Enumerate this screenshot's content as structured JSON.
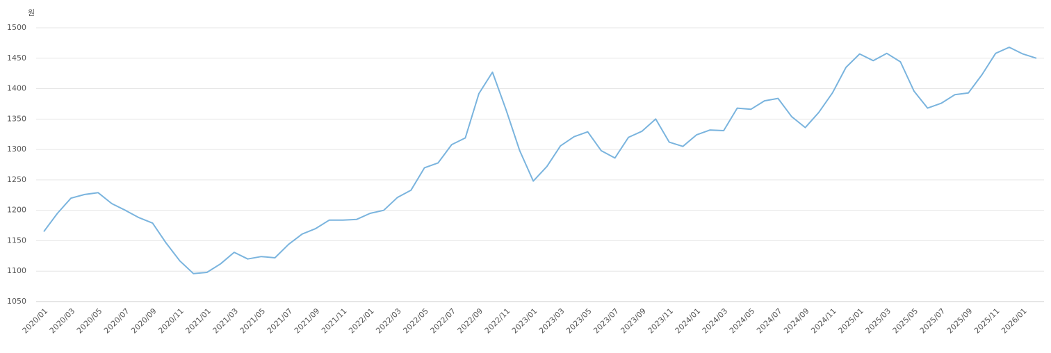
{
  "chart_data": {
    "type": "line",
    "y_label": "원",
    "categories": [
      "2020/01",
      null,
      "2020/03",
      null,
      "2020/05",
      null,
      "2020/07",
      null,
      "2020/09",
      null,
      "2020/11",
      null,
      "2021/01",
      null,
      "2021/03",
      null,
      "2021/05",
      null,
      "2021/07",
      null,
      "2021/09",
      null,
      "2021/11",
      null,
      "2022/01",
      null,
      "2022/03",
      null,
      "2022/05",
      null,
      "2022/07",
      null,
      "2022/09",
      null,
      "2022/11",
      null,
      "2023/01",
      null,
      "2023/03",
      null,
      "2023/05",
      null,
      "2023/07",
      null,
      "2023/09",
      null,
      "2023/11",
      null,
      "2024/01",
      null,
      "2024/03",
      null,
      "2024/05",
      null,
      "2024/07",
      null,
      "2024/09",
      null,
      "2024/11",
      null,
      "2025/01",
      null,
      "2025/03",
      null,
      "2025/05",
      null,
      "2025/07",
      null,
      "2025/09",
      null,
      "2025/11",
      null,
      "2026/01",
      null
    ],
    "series": [
      {
        "color": "#7ab4de",
        "values": [
          1165,
          1195,
          1220,
          1226,
          1229,
          1211,
          1200,
          1188,
          1179,
          1146,
          1117,
          1096,
          1098,
          1112,
          1131,
          1120,
          1124,
          1122,
          1144,
          1161,
          1170,
          1184,
          1184,
          1185,
          1195,
          1200,
          1221,
          1233,
          1270,
          1278,
          1308,
          1319,
          1392,
          1427,
          1365,
          1298,
          1248,
          1272,
          1306,
          1321,
          1329,
          1298,
          1286,
          1320,
          1330,
          1350,
          1312,
          1305,
          1324,
          1332,
          1331,
          1368,
          1366,
          1380,
          1384,
          1354,
          1336,
          1361,
          1393,
          1435,
          1457,
          1446,
          1458,
          1444,
          1396,
          1368,
          1376,
          1390,
          1393,
          1423,
          1458,
          1468,
          1457,
          1450
        ]
      }
    ],
    "ylim": [
      1050,
      1500
    ],
    "yticks": [
      1050,
      1100,
      1150,
      1200,
      1250,
      1300,
      1350,
      1400,
      1450,
      1500
    ],
    "grid": true
  }
}
